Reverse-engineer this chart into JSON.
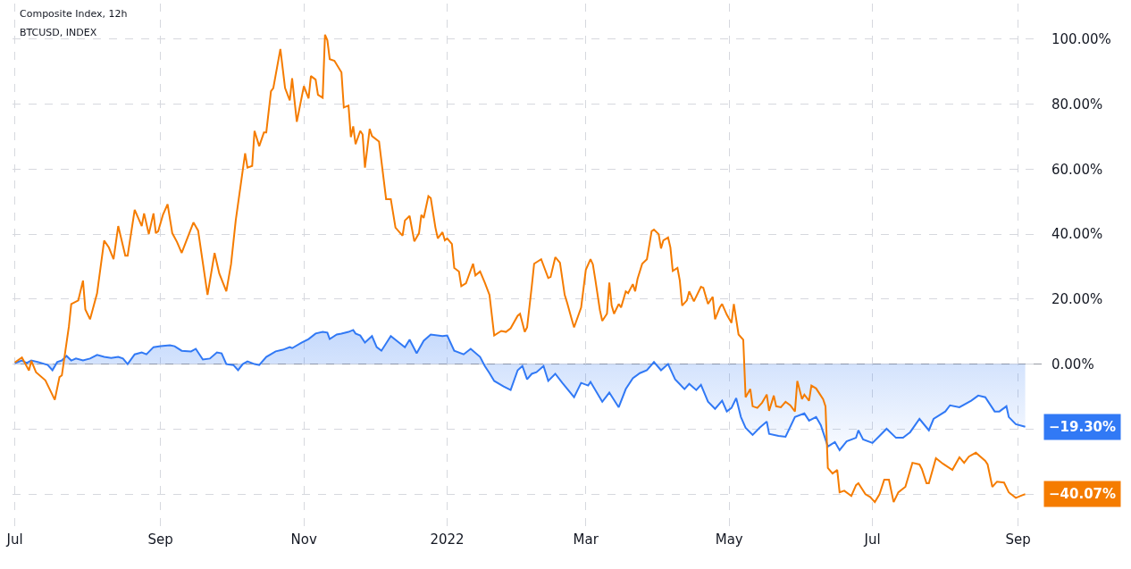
{
  "chart_data": {
    "type": "line",
    "title": "Composite Index, 12h",
    "subtitle": "BTCUSD, INDEX",
    "xlim": [
      "2021-06-30",
      "2022-09-11"
    ],
    "xticks": [
      {
        "value": "2021-07-01",
        "label": "Jul"
      },
      {
        "value": "2021-09-01",
        "label": "Sep"
      },
      {
        "value": "2021-11-01",
        "label": "Nov"
      },
      {
        "value": "2022-01-01",
        "label": "2022"
      },
      {
        "value": "2022-03-01",
        "label": "Mar"
      },
      {
        "value": "2022-05-01",
        "label": "May"
      },
      {
        "value": "2022-07-01",
        "label": "Jul"
      },
      {
        "value": "2022-09-01",
        "label": "Sep"
      }
    ],
    "ylim": [
      -51,
      111
    ],
    "yticks": [
      {
        "value": -40,
        "label": null
      },
      {
        "value": -20,
        "label": null
      },
      {
        "value": 0,
        "label": "0.00%"
      },
      {
        "value": 20,
        "label": "20.00%"
      },
      {
        "value": 40,
        "label": "40.00%"
      },
      {
        "value": 60,
        "label": "60.00%"
      },
      {
        "value": 80,
        "label": "80.00%"
      },
      {
        "value": 100,
        "label": "100.00%"
      }
    ],
    "grid": true,
    "marker": "none",
    "line_style": "solid",
    "ref_lines": [
      {
        "axis": "y",
        "value": 0,
        "color": "#9598a1"
      }
    ],
    "annotations": [
      {
        "text": "−19.30%",
        "x": "2022-09-04",
        "y": -19.3
      },
      {
        "text": "−40.07%",
        "x": "2022-09-04",
        "y": -40.07
      }
    ],
    "series": [
      {
        "type": "area",
        "color": "#3179f5",
        "x": [
          "2021-07-01",
          "2021-07-04",
          "2021-07-06",
          "2021-07-08",
          "2021-07-11",
          "2021-07-15",
          "2021-07-17",
          "2021-07-19",
          "2021-07-21",
          "2021-07-23",
          "2021-07-25",
          "2021-07-27",
          "2021-07-30",
          "2021-08-02",
          "2021-08-05",
          "2021-08-08",
          "2021-08-11",
          "2021-08-14",
          "2021-08-16",
          "2021-08-18",
          "2021-08-21",
          "2021-08-24",
          "2021-08-26",
          "2021-08-29",
          "2021-09-01",
          "2021-09-05",
          "2021-09-07",
          "2021-09-10",
          "2021-09-14",
          "2021-09-16",
          "2021-09-19",
          "2021-09-22",
          "2021-09-25",
          "2021-09-27",
          "2021-09-29",
          "2021-10-02",
          "2021-10-04",
          "2021-10-06",
          "2021-10-08",
          "2021-10-11",
          "2021-10-13",
          "2021-10-16",
          "2021-10-20",
          "2021-10-23",
          "2021-10-26",
          "2021-10-27",
          "2021-10-31",
          "2021-11-03",
          "2021-11-06",
          "2021-11-09",
          "2021-11-11",
          "2021-11-12",
          "2021-11-15",
          "2021-11-17",
          "2021-11-20",
          "2021-11-22",
          "2021-11-23",
          "2021-11-25",
          "2021-11-27",
          "2021-11-30",
          "2021-12-02",
          "2021-12-04",
          "2021-12-08",
          "2021-12-11",
          "2021-12-14",
          "2021-12-16",
          "2021-12-19",
          "2021-12-22",
          "2021-12-25",
          "2021-12-30",
          "2022-01-01",
          "2022-01-04",
          "2022-01-08",
          "2022-01-11",
          "2022-01-15",
          "2022-01-17",
          "2022-01-19",
          "2022-01-21",
          "2022-01-25",
          "2022-01-28",
          "2022-01-31",
          "2022-02-02",
          "2022-02-04",
          "2022-02-06",
          "2022-02-08",
          "2022-02-11",
          "2022-02-13",
          "2022-02-16",
          "2022-02-19",
          "2022-02-24",
          "2022-02-27",
          "2022-03-02",
          "2022-03-03",
          "2022-03-08",
          "2022-03-11",
          "2022-03-15",
          "2022-03-18",
          "2022-03-21",
          "2022-03-24",
          "2022-03-27",
          "2022-03-30",
          "2022-04-02",
          "2022-04-05",
          "2022-04-08",
          "2022-04-12",
          "2022-04-14",
          "2022-04-17",
          "2022-04-19",
          "2022-04-22",
          "2022-04-25",
          "2022-04-28",
          "2022-04-30",
          "2022-05-02",
          "2022-05-04",
          "2022-05-06",
          "2022-05-08",
          "2022-05-11",
          "2022-05-14",
          "2022-05-17",
          "2022-05-18",
          "2022-05-22",
          "2022-05-25",
          "2022-05-29",
          "2022-06-02",
          "2022-06-04",
          "2022-06-07",
          "2022-06-09",
          "2022-06-12",
          "2022-06-15",
          "2022-06-17",
          "2022-06-20",
          "2022-06-24",
          "2022-06-25",
          "2022-06-27",
          "2022-07-01",
          "2022-07-04",
          "2022-07-07",
          "2022-07-11",
          "2022-07-14",
          "2022-07-17",
          "2022-07-21",
          "2022-07-25",
          "2022-07-27",
          "2022-08-01",
          "2022-08-03",
          "2022-08-07",
          "2022-08-12",
          "2022-08-15",
          "2022-08-18",
          "2022-08-22",
          "2022-08-24",
          "2022-08-27",
          "2022-08-28",
          "2022-08-31",
          "2022-09-04"
        ],
        "values": [
          0.3,
          1.1,
          0.3,
          1.1,
          0.6,
          -0.3,
          -1.9,
          0.6,
          1.1,
          2.5,
          1.1,
          1.7,
          1.1,
          1.7,
          2.8,
          2.2,
          1.9,
          2.2,
          1.7,
          0,
          3,
          3.6,
          3,
          5.2,
          5.5,
          5.8,
          5.5,
          4.1,
          3.9,
          4.7,
          1.4,
          1.7,
          3.6,
          3.3,
          0,
          -0.3,
          -1.9,
          0,
          0.8,
          0,
          -0.3,
          2.2,
          3.9,
          4.4,
          5.2,
          4.9,
          6.6,
          7.7,
          9.4,
          9.9,
          9.7,
          7.7,
          9.1,
          9.4,
          9.9,
          10.5,
          9.4,
          8.8,
          6.6,
          8.6,
          5.2,
          4.1,
          8.6,
          6.9,
          5.2,
          7.5,
          3.3,
          7.2,
          9.1,
          8.6,
          8.8,
          4.1,
          3,
          4.7,
          2.2,
          -0.6,
          -2.8,
          -5.2,
          -6.9,
          -8,
          -1.9,
          -0.6,
          -4.7,
          -3,
          -2.5,
          -0.6,
          -5.2,
          -3,
          -5.8,
          -10.2,
          -5.8,
          -6.6,
          -5.5,
          -11.6,
          -8.8,
          -13.3,
          -7.7,
          -4.4,
          -2.8,
          -1.9,
          0.6,
          -1.9,
          0,
          -4.7,
          -7.7,
          -6.1,
          -8,
          -6.4,
          -11.6,
          -13.8,
          -11.3,
          -14.6,
          -13.5,
          -10.5,
          -16.3,
          -19.6,
          -21.8,
          -19.6,
          -17.7,
          -21.5,
          -22.1,
          -22.4,
          -16.3,
          -15.2,
          -17.4,
          -16.3,
          -18.8,
          -25.4,
          -24,
          -26.5,
          -23.8,
          -22.7,
          -20.4,
          -23.2,
          -24.3,
          -22.1,
          -19.9,
          -22.7,
          -22.7,
          -21,
          -16.9,
          -20.4,
          -16.9,
          -14.6,
          -12.7,
          -13.3,
          -11.3,
          -9.7,
          -10.2,
          -14.6,
          -14.6,
          -13,
          -16.3,
          -18.5,
          -19.3
        ]
      },
      {
        "color": "#f57c00",
        "x": [
          "2021-07-01",
          "2021-07-04",
          "2021-07-07",
          "2021-07-08",
          "2021-07-10",
          "2021-07-14",
          "2021-07-18",
          "2021-07-20",
          "2021-07-21",
          "2021-07-24",
          "2021-07-25",
          "2021-07-28",
          "2021-07-30",
          "2021-07-31",
          "2021-08-02",
          "2021-08-05",
          "2021-08-08",
          "2021-08-10",
          "2021-08-12",
          "2021-08-14",
          "2021-08-17",
          "2021-08-18",
          "2021-08-21",
          "2021-08-24",
          "2021-08-25",
          "2021-08-27",
          "2021-08-29",
          "2021-08-30",
          "2021-08-31",
          "2021-09-02",
          "2021-09-04",
          "2021-09-06",
          "2021-09-08",
          "2021-09-10",
          "2021-09-15",
          "2021-09-17",
          "2021-09-21",
          "2021-09-24",
          "2021-09-26",
          "2021-09-29",
          "2021-10-01",
          "2021-10-03",
          "2021-10-07",
          "2021-10-08",
          "2021-10-10",
          "2021-10-11",
          "2021-10-13",
          "2021-10-15",
          "2021-10-16",
          "2021-10-18",
          "2021-10-19",
          "2021-10-22",
          "2021-10-24",
          "2021-10-26",
          "2021-10-27",
          "2021-10-29",
          "2021-11-01",
          "2021-11-03",
          "2021-11-04",
          "2021-11-06",
          "2021-11-07",
          "2021-11-09",
          "2021-11-10",
          "2021-11-11",
          "2021-11-12",
          "2021-11-14",
          "2021-11-17",
          "2021-11-18",
          "2021-11-20",
          "2021-11-21",
          "2021-11-22",
          "2021-11-23",
          "2021-11-25",
          "2021-11-26",
          "2021-11-27",
          "2021-11-29",
          "2021-11-30",
          "2021-12-03",
          "2021-12-06",
          "2021-12-08",
          "2021-12-10",
          "2021-12-13",
          "2021-12-14",
          "2021-12-16",
          "2021-12-18",
          "2021-12-20",
          "2021-12-21",
          "2021-12-22",
          "2021-12-24",
          "2021-12-25",
          "2021-12-27",
          "2021-12-28",
          "2021-12-30",
          "2021-12-31",
          "2022-01-01",
          "2022-01-03",
          "2022-01-04",
          "2022-01-06",
          "2022-01-07",
          "2022-01-09",
          "2022-01-12",
          "2022-01-13",
          "2022-01-15",
          "2022-01-17",
          "2022-01-19",
          "2022-01-21",
          "2022-01-24",
          "2022-01-26",
          "2022-01-28",
          "2022-01-31",
          "2022-02-01",
          "2022-02-03",
          "2022-02-04",
          "2022-02-06",
          "2022-02-07",
          "2022-02-10",
          "2022-02-13",
          "2022-02-14",
          "2022-02-16",
          "2022-02-18",
          "2022-02-20",
          "2022-02-21",
          "2022-02-23",
          "2022-02-24",
          "2022-02-27",
          "2022-03-01",
          "2022-03-03",
          "2022-03-04",
          "2022-03-05",
          "2022-03-07",
          "2022-03-08",
          "2022-03-10",
          "2022-03-11",
          "2022-03-12",
          "2022-03-13",
          "2022-03-15",
          "2022-03-16",
          "2022-03-18",
          "2022-03-19",
          "2022-03-21",
          "2022-03-22",
          "2022-03-23",
          "2022-03-25",
          "2022-03-27",
          "2022-03-29",
          "2022-03-30",
          "2022-04-01",
          "2022-04-02",
          "2022-04-03",
          "2022-04-05",
          "2022-04-06",
          "2022-04-07",
          "2022-04-09",
          "2022-04-10",
          "2022-04-11",
          "2022-04-13",
          "2022-04-14",
          "2022-04-16",
          "2022-04-19",
          "2022-04-20",
          "2022-04-22",
          "2022-04-24",
          "2022-04-25",
          "2022-04-27",
          "2022-04-28",
          "2022-04-30",
          "2022-05-02",
          "2022-05-03",
          "2022-05-05",
          "2022-05-07",
          "2022-05-08",
          "2022-05-10",
          "2022-05-11",
          "2022-05-13",
          "2022-05-15",
          "2022-05-17",
          "2022-05-18",
          "2022-05-20",
          "2022-05-21",
          "2022-05-23",
          "2022-05-25",
          "2022-05-27",
          "2022-05-29",
          "2022-05-30",
          "2022-06-01",
          "2022-06-02",
          "2022-06-04",
          "2022-06-05",
          "2022-06-07",
          "2022-06-09",
          "2022-06-10",
          "2022-06-11",
          "2022-06-12",
          "2022-06-14",
          "2022-06-16",
          "2022-06-17",
          "2022-06-19",
          "2022-06-22",
          "2022-06-24",
          "2022-06-25",
          "2022-06-28",
          "2022-06-30",
          "2022-07-02",
          "2022-07-04",
          "2022-07-06",
          "2022-07-08",
          "2022-07-10",
          "2022-07-12",
          "2022-07-15",
          "2022-07-18",
          "2022-07-21",
          "2022-07-22",
          "2022-07-24",
          "2022-07-25",
          "2022-07-28",
          "2022-07-31",
          "2022-08-04",
          "2022-08-07",
          "2022-08-09",
          "2022-08-11",
          "2022-08-14",
          "2022-08-18",
          "2022-08-19",
          "2022-08-21",
          "2022-08-23",
          "2022-08-26",
          "2022-08-28",
          "2022-08-31",
          "2022-09-03",
          "2022-09-04"
        ],
        "values": [
          0.5,
          2,
          -2,
          1,
          -2.5,
          -5,
          -11,
          -4,
          -3.5,
          11.6,
          18.5,
          19.6,
          25.7,
          16.8,
          13.8,
          21.8,
          38,
          35.9,
          32.3,
          42.5,
          33.4,
          33.4,
          47.5,
          42.5,
          46.4,
          40,
          46.4,
          40.3,
          40.9,
          45.9,
          49.2,
          40.3,
          37.6,
          34.2,
          43.6,
          41.1,
          21.3,
          34.2,
          27.9,
          22.4,
          30.7,
          44.2,
          64.9,
          60.5,
          61,
          71.8,
          67.1,
          71.3,
          71.3,
          84,
          85,
          97,
          85,
          81.2,
          88,
          74.6,
          85.6,
          81.8,
          88.7,
          87.6,
          82.9,
          82,
          101.4,
          99.7,
          93.9,
          93.4,
          89.8,
          79,
          79.6,
          69.9,
          73.2,
          67.7,
          71.8,
          70.7,
          60.5,
          72.4,
          70.2,
          68.5,
          50.8,
          50.8,
          42,
          39.5,
          44.2,
          45.6,
          37.8,
          40.3,
          45.9,
          45,
          51.7,
          51.1,
          42,
          38.7,
          40.6,
          38.1,
          38.7,
          37,
          29.6,
          28.5,
          24,
          24.9,
          30.9,
          27.3,
          28.5,
          25.1,
          21.3,
          8.8,
          10.2,
          9.9,
          11,
          14.9,
          15.5,
          9.9,
          11.3,
          24,
          30.9,
          32.3,
          26.5,
          26.8,
          32.9,
          31.2,
          21.3,
          19,
          13.8,
          11.3,
          17.4,
          29,
          32.3,
          30.7,
          26.2,
          16.6,
          13.3,
          15.5,
          25.1,
          18,
          15.5,
          18.5,
          17.4,
          22.4,
          21.8,
          24.6,
          22.4,
          26.2,
          30.9,
          32.3,
          40.9,
          41.4,
          40,
          35.6,
          38.1,
          39,
          35.9,
          28.7,
          29.6,
          25.7,
          18,
          19.6,
          22.4,
          19.3,
          23.8,
          23.5,
          18.5,
          20.7,
          13.8,
          17.4,
          18.5,
          15.2,
          12.7,
          18.5,
          9.1,
          7.5,
          -10.2,
          -7.7,
          -13,
          -13.5,
          -11.9,
          -9.4,
          -14.4,
          -9.7,
          -13,
          -13.3,
          -11.6,
          -12.7,
          -14.6,
          -5.2,
          -10.8,
          -9.4,
          -11.3,
          -6.6,
          -7.5,
          -9.7,
          -10.8,
          -13,
          -32,
          -33.7,
          -32.6,
          -39.5,
          -39,
          -40.6,
          -37.3,
          -36.7,
          -40.1,
          -40.9,
          -42.5,
          -40.1,
          -35.6,
          -35.6,
          -42.5,
          -39.5,
          -37.8,
          -30.4,
          -30.9,
          -32.3,
          -36.7,
          -36.7,
          -29,
          -30.7,
          -32.6,
          -28.7,
          -30.4,
          -28.5,
          -27.3,
          -29.8,
          -30.9,
          -37.8,
          -36.2,
          -36.5,
          -39.5,
          -41.2,
          -40.3,
          -40.07
        ]
      }
    ]
  }
}
